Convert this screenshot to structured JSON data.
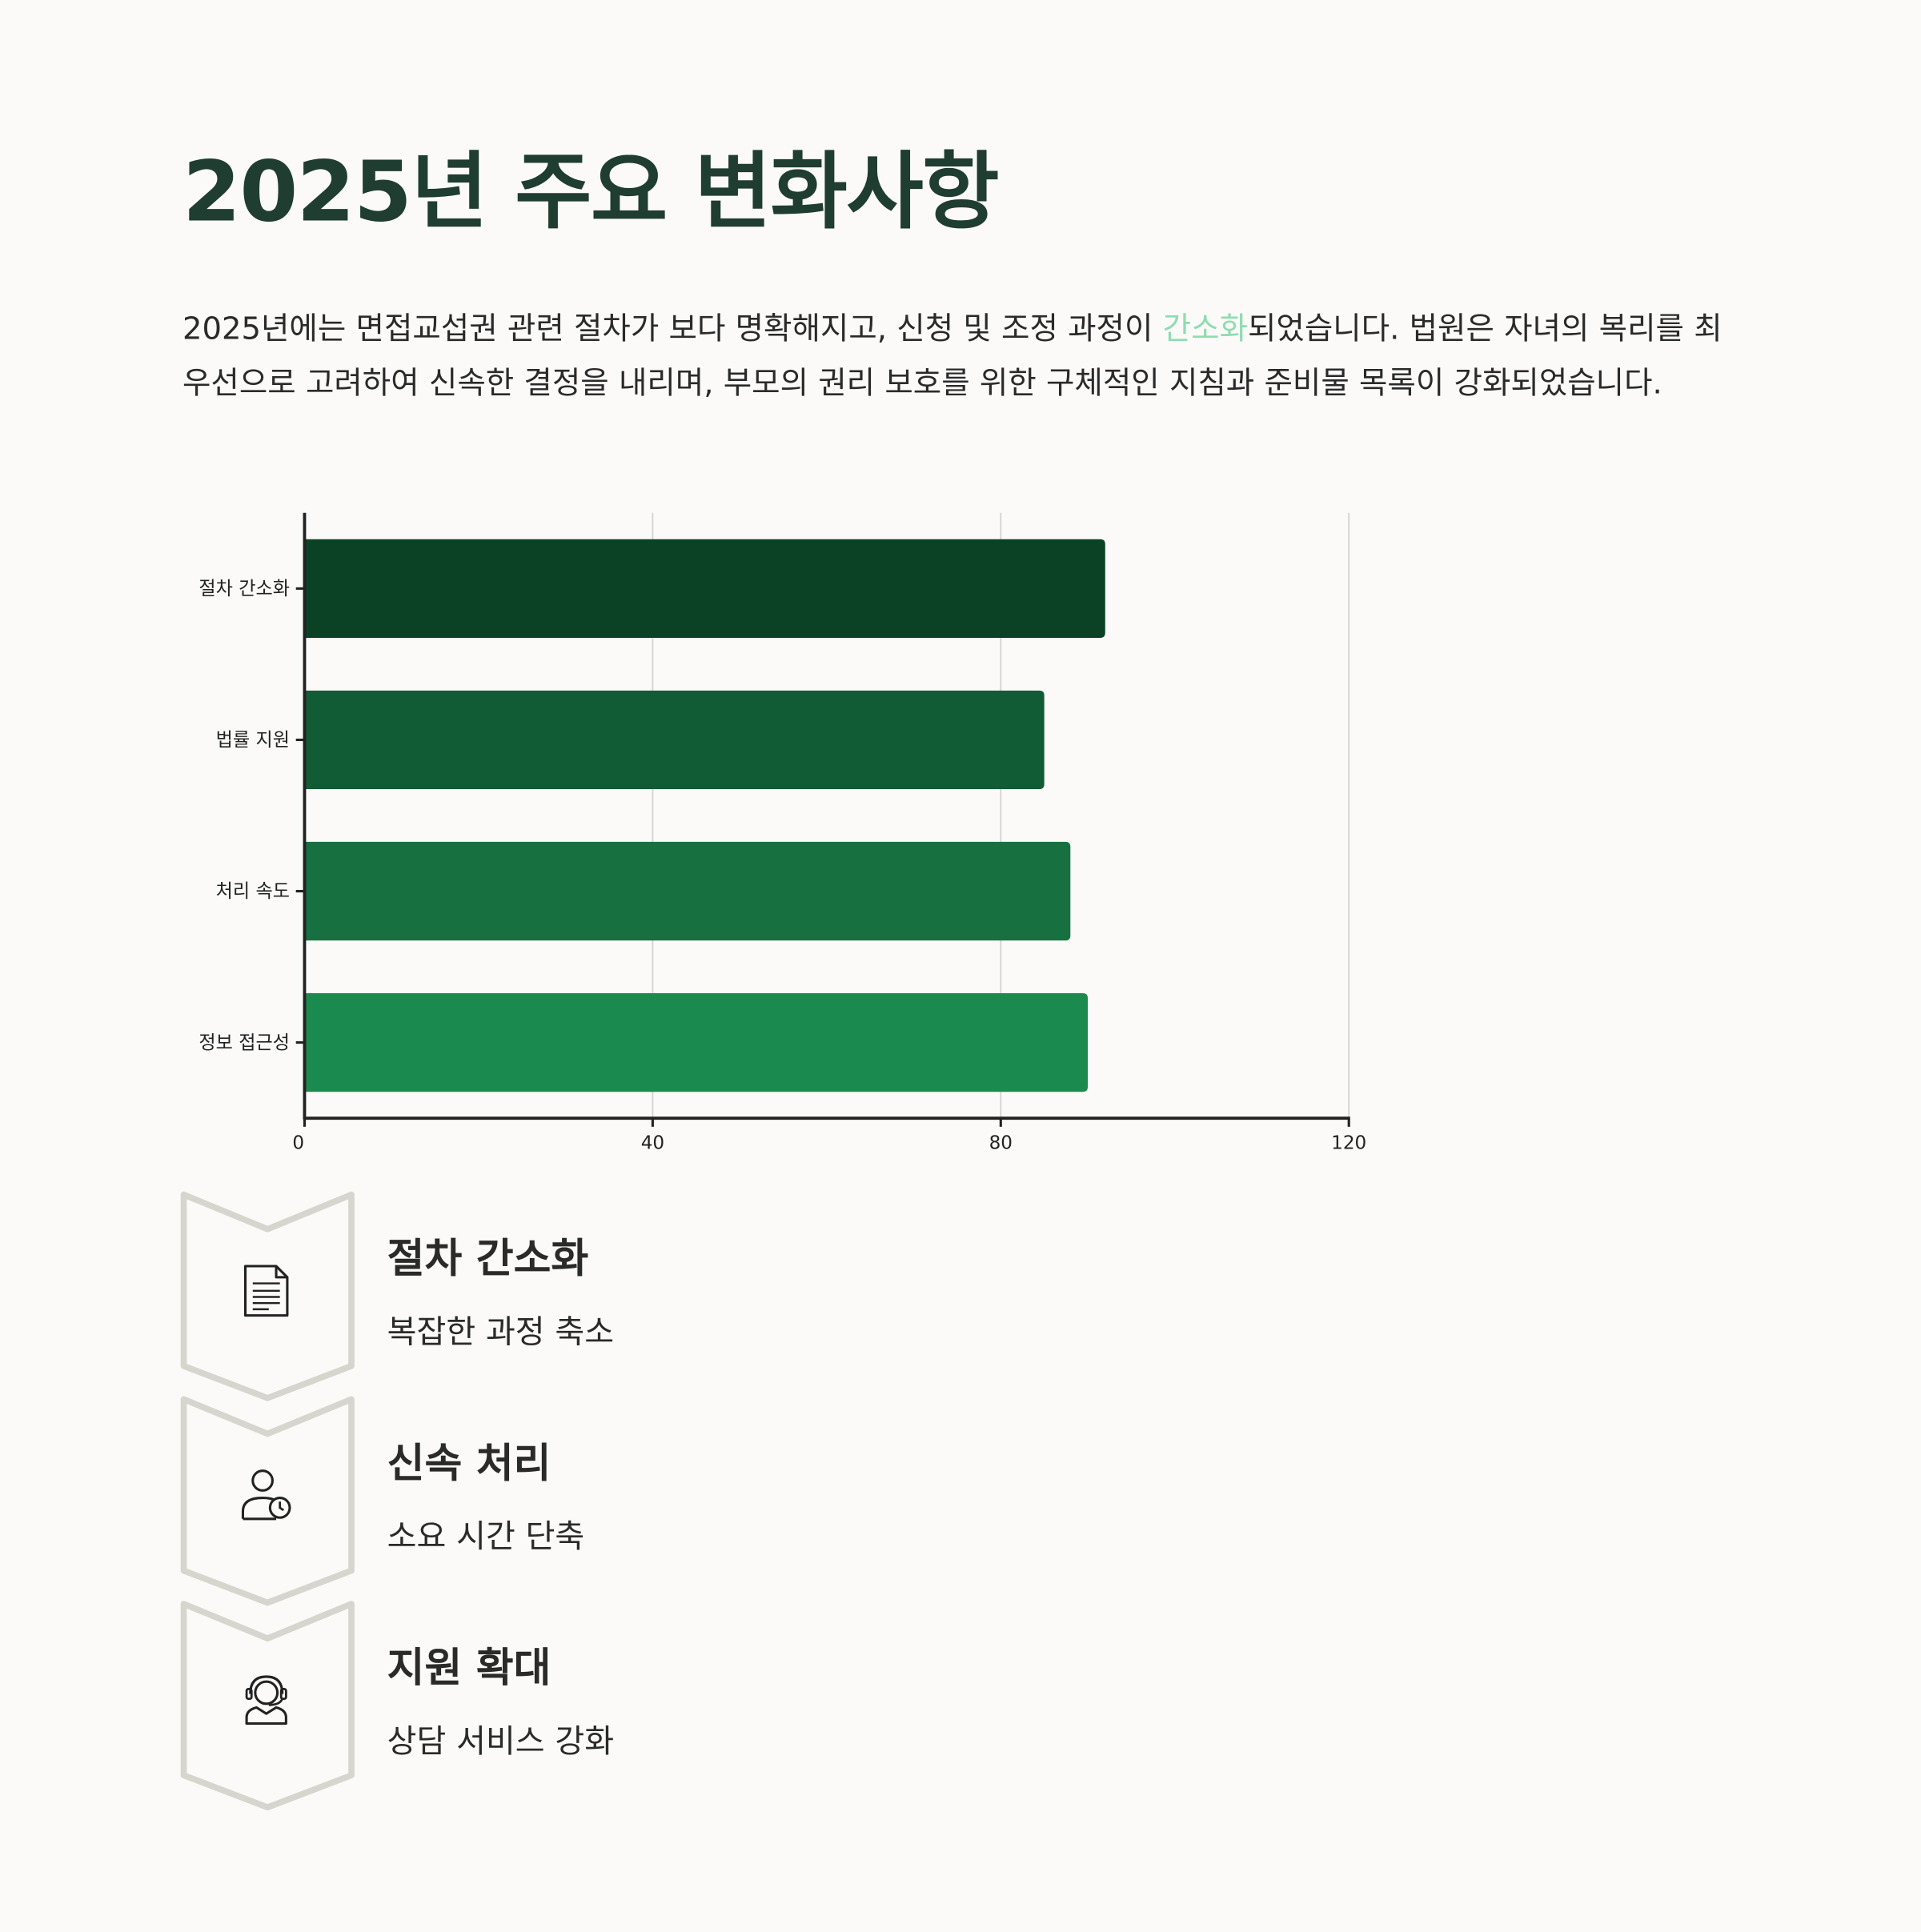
{
  "title": "2025년 주요 변화사항",
  "paragraph": {
    "before": "2025년에는 면접교섭권 관련 절차가 보다 명확해지고, 신청 및 조정 과정이 ",
    "highlight": "간소화",
    "after": "되었습니다. 법원은 자녀의 복리를 최우선으로 고려하여 신속한 결정을 내리며, 부모의 권리 보호를 위한 구체적인 지침과 준비물 목록이 강화되었습니다.",
    "highlight_color": "#8fdcb0"
  },
  "chart_data": {
    "type": "bar",
    "orientation": "horizontal",
    "categories": [
      "절차 간소화",
      "법률 지원",
      "처리 속도",
      "정보 접근성"
    ],
    "values": [
      92,
      85,
      88,
      90
    ],
    "colors": [
      "#0b4225",
      "#115c35",
      "#167040",
      "#1b8a4e"
    ],
    "xlim": [
      0,
      120
    ],
    "xticks": [
      "0",
      "40",
      "80",
      "120"
    ],
    "grid": true,
    "xlabel": "",
    "ylabel": ""
  },
  "steps": [
    {
      "icon": "document-icon",
      "title": "절차 간소화",
      "subtitle": "복잡한 과정 축소"
    },
    {
      "icon": "user-clock-icon",
      "title": "신속 처리",
      "subtitle": "소요 시간 단축"
    },
    {
      "icon": "headset-support-icon",
      "title": "지원 확대",
      "subtitle": "상담 서비스 강화"
    }
  ]
}
